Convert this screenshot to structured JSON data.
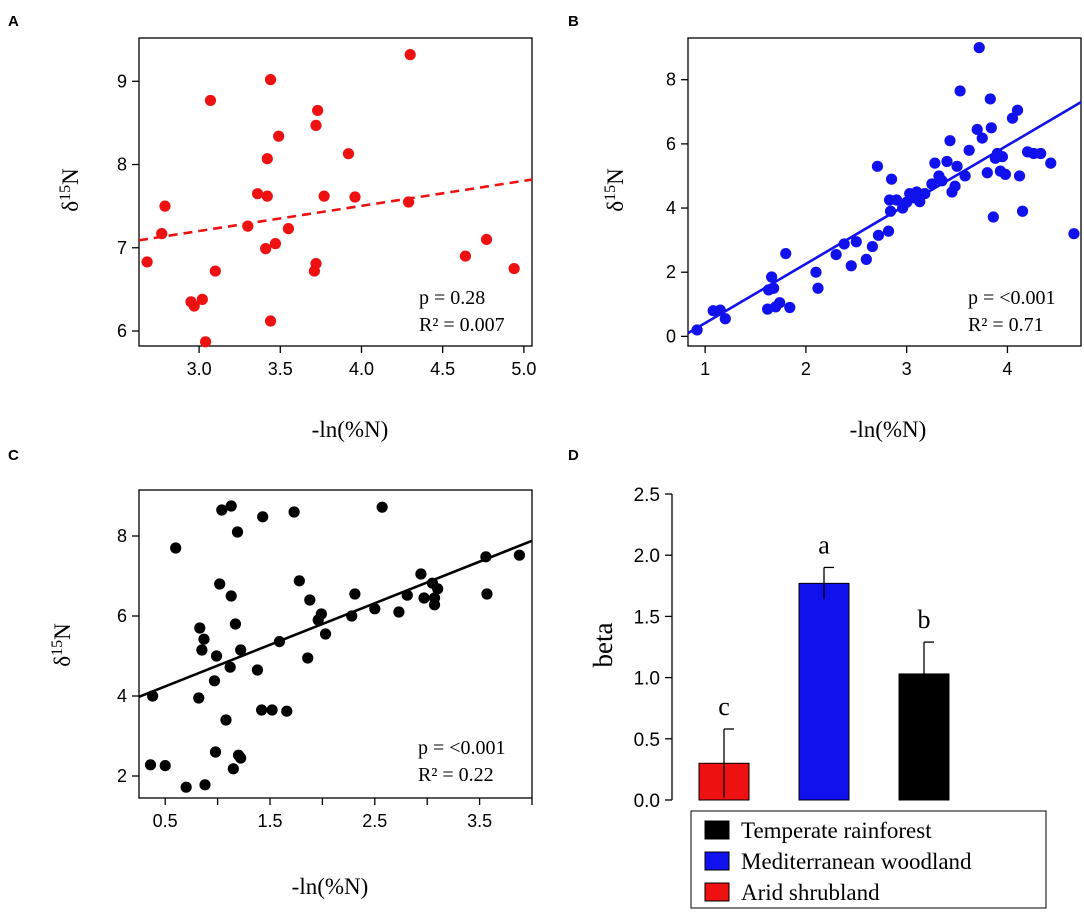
{
  "chart_data": [
    {
      "panel_letter": "A",
      "type": "scatter",
      "color": "#ee1111",
      "xlabel": "-ln(%N)",
      "ylabel_base": "δ",
      "ylabel_sup": "15",
      "ylabel_tail": "N",
      "xlim": [
        2.63,
        5.05
      ],
      "ylim": [
        5.82,
        9.52
      ],
      "xticks": [
        3.0,
        3.5,
        4.0,
        4.5,
        5.0
      ],
      "xtick_labels": [
        "3.0",
        "3.5",
        "4.0",
        "4.5",
        "5.0"
      ],
      "yticks": [
        6,
        7,
        8,
        9
      ],
      "ytick_labels": [
        "6",
        "7",
        "8",
        "9"
      ],
      "fit": {
        "style": "dashed",
        "from": [
          2.63,
          7.09
        ],
        "to": [
          5.05,
          7.82
        ]
      },
      "stat_p": "p = 0.28",
      "stat_r2": "R² = 0.007",
      "points": [
        [
          2.68,
          6.83
        ],
        [
          2.77,
          7.17
        ],
        [
          2.79,
          7.5
        ],
        [
          2.95,
          6.35
        ],
        [
          2.97,
          6.3
        ],
        [
          3.02,
          6.38
        ],
        [
          3.04,
          5.87
        ],
        [
          3.07,
          8.77
        ],
        [
          3.1,
          6.72
        ],
        [
          3.3,
          7.26
        ],
        [
          3.36,
          7.65
        ],
        [
          3.41,
          6.99
        ],
        [
          3.42,
          7.62
        ],
        [
          3.42,
          8.07
        ],
        [
          3.44,
          9.02
        ],
        [
          3.44,
          6.12
        ],
        [
          3.47,
          7.05
        ],
        [
          3.49,
          8.34
        ],
        [
          3.55,
          7.23
        ],
        [
          3.71,
          6.72
        ],
        [
          3.72,
          6.81
        ],
        [
          3.72,
          8.47
        ],
        [
          3.73,
          8.65
        ],
        [
          3.77,
          7.62
        ],
        [
          3.92,
          8.13
        ],
        [
          3.96,
          7.61
        ],
        [
          4.29,
          7.55
        ],
        [
          4.3,
          9.32
        ],
        [
          4.64,
          6.9
        ],
        [
          4.77,
          7.1
        ],
        [
          4.94,
          6.75
        ]
      ]
    },
    {
      "panel_letter": "B",
      "type": "scatter",
      "color": "#1111ee",
      "xlabel": "-ln(%N)",
      "ylabel_base": "δ",
      "ylabel_sup": "15",
      "ylabel_tail": "N",
      "xlim": [
        0.83,
        4.73
      ],
      "ylim": [
        -0.3,
        9.3
      ],
      "xticks": [
        1,
        2,
        3,
        4
      ],
      "xtick_labels": [
        "1",
        "2",
        "3",
        "4"
      ],
      "yticks": [
        0,
        2,
        4,
        6,
        8
      ],
      "ytick_labels": [
        "0",
        "2",
        "4",
        "6",
        "8"
      ],
      "fit": {
        "style": "solid",
        "from": [
          0.83,
          0.1
        ],
        "to": [
          4.73,
          7.3
        ]
      },
      "stat_p": "p = <0.001",
      "stat_r2": "R² = 0.71",
      "points": [
        [
          0.92,
          0.2
        ],
        [
          1.08,
          0.8
        ],
        [
          1.15,
          0.82
        ],
        [
          1.2,
          0.55
        ],
        [
          1.62,
          0.85
        ],
        [
          1.63,
          1.45
        ],
        [
          1.66,
          1.85
        ],
        [
          1.68,
          1.5
        ],
        [
          1.7,
          0.92
        ],
        [
          1.74,
          1.05
        ],
        [
          1.8,
          2.58
        ],
        [
          1.84,
          0.9
        ],
        [
          2.1,
          2.0
        ],
        [
          2.12,
          1.5
        ],
        [
          2.3,
          2.55
        ],
        [
          2.38,
          2.88
        ],
        [
          2.45,
          2.2
        ],
        [
          2.5,
          2.95
        ],
        [
          2.6,
          2.4
        ],
        [
          2.66,
          2.8
        ],
        [
          2.71,
          5.3
        ],
        [
          2.72,
          3.15
        ],
        [
          2.82,
          3.28
        ],
        [
          2.83,
          4.25
        ],
        [
          2.84,
          3.9
        ],
        [
          2.85,
          4.9
        ],
        [
          2.9,
          4.25
        ],
        [
          2.96,
          4.0
        ],
        [
          3.0,
          4.18
        ],
        [
          3.03,
          4.45
        ],
        [
          3.06,
          4.32
        ],
        [
          3.1,
          4.5
        ],
        [
          3.13,
          4.2
        ],
        [
          3.18,
          4.45
        ],
        [
          3.25,
          4.75
        ],
        [
          3.28,
          5.4
        ],
        [
          3.32,
          5.0
        ],
        [
          3.35,
          4.85
        ],
        [
          3.4,
          5.45
        ],
        [
          3.43,
          6.1
        ],
        [
          3.45,
          4.5
        ],
        [
          3.48,
          4.68
        ],
        [
          3.5,
          5.3
        ],
        [
          3.53,
          7.65
        ],
        [
          3.58,
          5.0
        ],
        [
          3.62,
          5.8
        ],
        [
          3.7,
          6.45
        ],
        [
          3.72,
          9.0
        ],
        [
          3.75,
          6.18
        ],
        [
          3.8,
          5.1
        ],
        [
          3.83,
          7.4
        ],
        [
          3.84,
          6.5
        ],
        [
          3.86,
          3.72
        ],
        [
          3.88,
          5.55
        ],
        [
          3.9,
          5.7
        ],
        [
          3.93,
          5.15
        ],
        [
          3.95,
          5.6
        ],
        [
          3.98,
          5.05
        ],
        [
          4.05,
          6.8
        ],
        [
          4.1,
          7.05
        ],
        [
          4.12,
          5.0
        ],
        [
          4.15,
          3.9
        ],
        [
          4.2,
          5.75
        ],
        [
          4.26,
          5.7
        ],
        [
          4.33,
          5.7
        ],
        [
          4.43,
          5.4
        ],
        [
          4.66,
          3.2
        ]
      ]
    },
    {
      "panel_letter": "C",
      "type": "scatter",
      "color": "#000000",
      "xlabel": "-ln(%N)",
      "ylabel_base": "δ",
      "ylabel_sup": "15",
      "ylabel_tail": "N",
      "xlim": [
        0.25,
        4.0
      ],
      "ylim": [
        1.45,
        9.15
      ],
      "xticks": [
        0.5,
        1.5,
        2.5,
        3.5
      ],
      "xtick_labels": [
        "0.5",
        "1.5",
        "2.5",
        "3.5"
      ],
      "xticks_minor": [
        1.0,
        2.0,
        3.0,
        4.0
      ],
      "yticks": [
        2,
        4,
        6,
        8
      ],
      "ytick_labels": [
        "2",
        "4",
        "6",
        "8"
      ],
      "fit": {
        "style": "solid",
        "from": [
          0.25,
          3.98
        ],
        "to": [
          4.0,
          7.88
        ]
      },
      "stat_p": "p = <0.001",
      "stat_r2": "R² = 0.22",
      "points": [
        [
          0.36,
          2.28
        ],
        [
          0.38,
          4.0
        ],
        [
          0.5,
          2.26
        ],
        [
          0.6,
          7.7
        ],
        [
          0.7,
          1.72
        ],
        [
          0.82,
          3.95
        ],
        [
          0.83,
          5.7
        ],
        [
          0.85,
          5.15
        ],
        [
          0.87,
          5.42
        ],
        [
          0.88,
          1.78
        ],
        [
          0.97,
          4.38
        ],
        [
          0.98,
          2.6
        ],
        [
          0.99,
          5.0
        ],
        [
          1.02,
          6.8
        ],
        [
          1.04,
          8.65
        ],
        [
          1.08,
          3.4
        ],
        [
          1.12,
          4.72
        ],
        [
          1.13,
          8.75
        ],
        [
          1.13,
          6.5
        ],
        [
          1.15,
          2.18
        ],
        [
          1.17,
          5.8
        ],
        [
          1.19,
          8.1
        ],
        [
          1.2,
          2.52
        ],
        [
          1.22,
          5.15
        ],
        [
          1.22,
          2.45
        ],
        [
          1.38,
          4.65
        ],
        [
          1.42,
          3.65
        ],
        [
          1.43,
          8.48
        ],
        [
          1.52,
          3.65
        ],
        [
          1.59,
          5.36
        ],
        [
          1.66,
          3.62
        ],
        [
          1.73,
          8.6
        ],
        [
          1.78,
          6.88
        ],
        [
          1.86,
          4.95
        ],
        [
          1.88,
          6.4
        ],
        [
          1.96,
          5.9
        ],
        [
          1.99,
          6.05
        ],
        [
          2.03,
          5.55
        ],
        [
          2.28,
          6.0
        ],
        [
          2.31,
          6.55
        ],
        [
          2.5,
          6.18
        ],
        [
          2.57,
          8.72
        ],
        [
          2.73,
          6.1
        ],
        [
          2.81,
          6.52
        ],
        [
          2.94,
          7.05
        ],
        [
          2.97,
          6.45
        ],
        [
          3.05,
          6.82
        ],
        [
          3.07,
          6.28
        ],
        [
          3.07,
          6.45
        ],
        [
          3.1,
          6.68
        ],
        [
          3.56,
          7.48
        ],
        [
          3.57,
          6.55
        ],
        [
          3.88,
          7.52
        ]
      ]
    },
    {
      "panel_letter": "D",
      "type": "bar",
      "ylabel": "beta",
      "ylim": [
        0,
        2.5
      ],
      "yticks": [
        0,
        0.5,
        1.0,
        1.5,
        2.0,
        2.5
      ],
      "ytick_labels": [
        "0.0",
        "0.5",
        "1.0",
        "1.5",
        "2.0",
        "2.5"
      ],
      "bars": [
        {
          "name": "Arid shrubland",
          "value": 0.3,
          "err": 0.28,
          "letter": "c",
          "color": "#ee1111"
        },
        {
          "name": "Mediterranean woodland",
          "value": 1.77,
          "err": 0.13,
          "letter": "a",
          "color": "#1111ee"
        },
        {
          "name": "Temperate rainforest",
          "value": 1.03,
          "err": 0.26,
          "letter": "b",
          "color": "#000000"
        }
      ],
      "legend": [
        {
          "label": "Temperate rainforest",
          "color": "#000000"
        },
        {
          "label": "Mediterranean woodland",
          "color": "#1111ee"
        },
        {
          "label": "Arid shrubland",
          "color": "#ee1111"
        }
      ]
    }
  ]
}
